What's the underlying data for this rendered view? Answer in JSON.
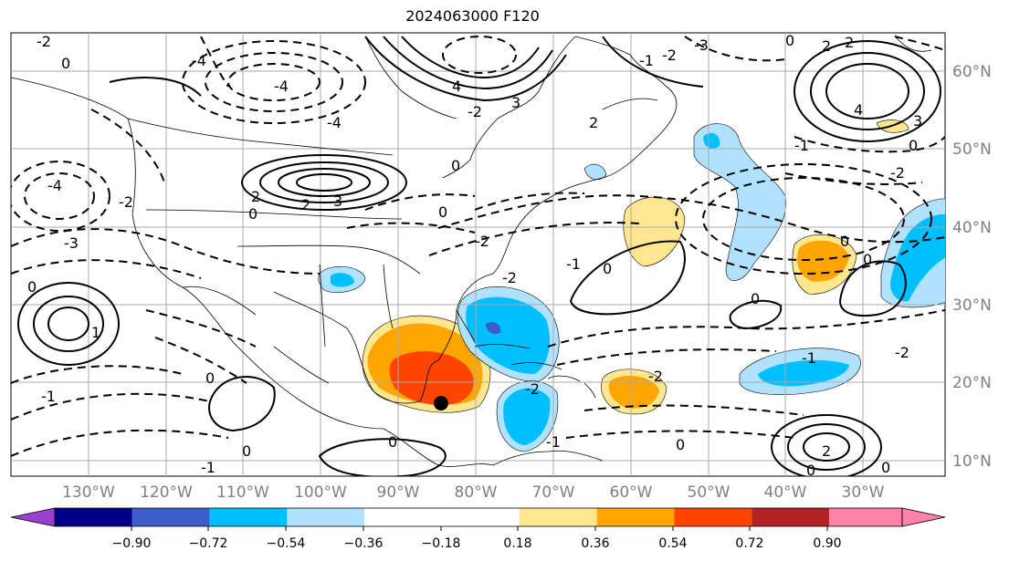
{
  "title": "2024063000 F120",
  "lon_labels": [
    "130°W",
    "120°W",
    "110°W",
    "100°W",
    "90°W",
    "80°W",
    "70°W",
    "60°W",
    "50°W",
    "40°W",
    "30°W"
  ],
  "lat_labels": [
    "60°N",
    "50°N",
    "40°N",
    "30°N",
    "20°N",
    "10°N"
  ],
  "colorbar": {
    "colors": [
      "#9b3fd1",
      "#00008b",
      "#3a5fcd",
      "#00bfff",
      "#b0e2ff",
      "#ffffff",
      "#ffe78f",
      "#ffa500",
      "#ff4500",
      "#b22222",
      "#ff82ab"
    ],
    "tick_labels": [
      "−0.90",
      "−0.72",
      "−0.54",
      "−0.36",
      "−0.18",
      "0.18",
      "0.36",
      "0.54",
      "0.72",
      "0.90"
    ]
  },
  "contour_labels": {
    "zero": "0",
    "one": "1",
    "two": "2",
    "three": "3",
    "four": "4",
    "neg_one": "-1",
    "neg_two": "-2",
    "neg_three": "-3",
    "neg_four": "-4"
  },
  "marker": {
    "name": "storm-center",
    "lon": -85,
    "lat": 17
  },
  "colors": {
    "contour": "#000000",
    "grid": "#aaaaaa",
    "coast": "#000000"
  }
}
